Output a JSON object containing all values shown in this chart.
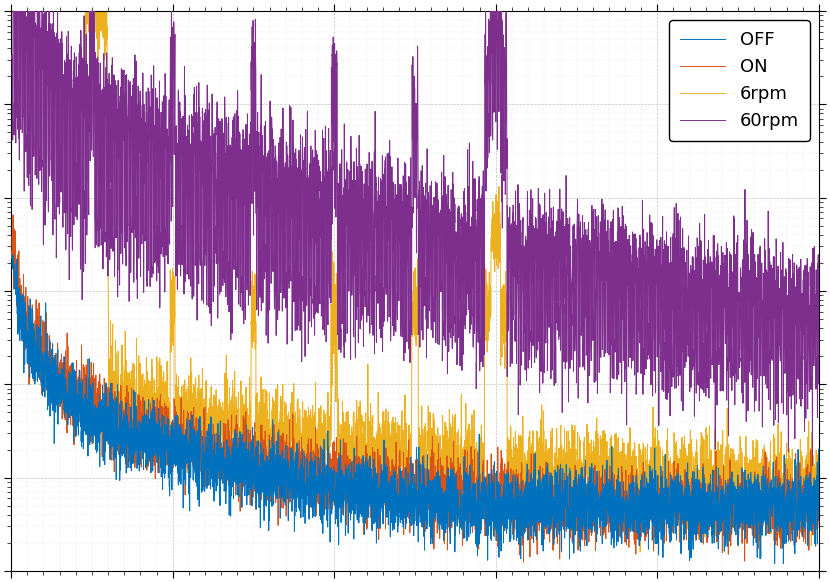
{
  "lines": [
    {
      "label": "OFF",
      "color": "#0072BD",
      "zorder": 4,
      "lw": 0.7
    },
    {
      "label": "ON",
      "color": "#D95319",
      "zorder": 3,
      "lw": 0.7
    },
    {
      "label": "6rpm",
      "color": "#EDB120",
      "zorder": 2,
      "lw": 0.7
    },
    {
      "label": "60rpm",
      "color": "#7E2F8E",
      "zorder": 5,
      "lw": 0.7
    }
  ],
  "xlim": [
    0,
    500
  ],
  "ylim": [
    1e-09,
    0.001
  ],
  "background_color": "#FFFFFF",
  "legend_loc": "upper right",
  "legend_fontsize": 13,
  "figsize": [
    8.3,
    5.82
  ],
  "dpi": 100,
  "seed": 42,
  "n_points": 5000,
  "f_min": 0.5,
  "f_max": 500,
  "grid_color": "#BBBBBB",
  "grid_lw": 0.5
}
